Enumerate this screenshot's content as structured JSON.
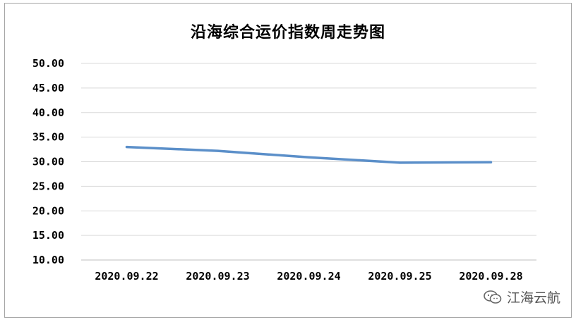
{
  "chart_data": {
    "type": "line",
    "title": "沿海综合运价指数周走势图",
    "categories": [
      "2020.09.22",
      "2020.09.23",
      "2020.09.24",
      "2020.09.25",
      "2020.09.28"
    ],
    "series": [
      {
        "values": [
          33.0,
          32.2,
          30.9,
          29.8,
          29.9
        ],
        "color": "#5b8fc9"
      }
    ],
    "ylim": [
      10.0,
      50.0
    ],
    "yticks": [
      "10.00",
      "15.00",
      "20.00",
      "25.00",
      "30.00",
      "35.00",
      "40.00",
      "45.00",
      "50.00"
    ],
    "grid": true,
    "xlabel": "",
    "ylabel": ""
  },
  "watermark": {
    "text": "江海云航",
    "icon": "wechat-icon"
  }
}
